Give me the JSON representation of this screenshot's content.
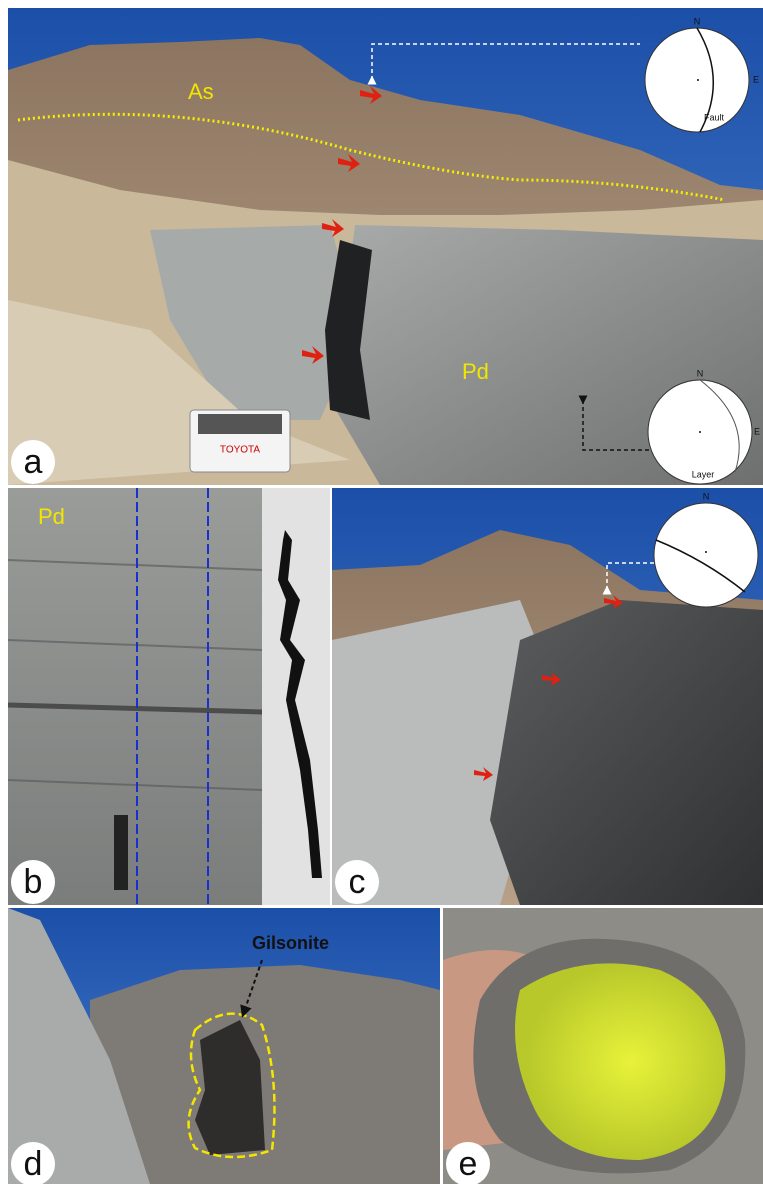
{
  "panels": [
    {
      "letter": "a",
      "labels": [
        "As",
        "Pd"
      ],
      "vehicle_text": "TOYOTA",
      "stereonets": [
        {
          "north": "N",
          "east": "E",
          "caption": "Fault"
        },
        {
          "north": "N",
          "east": "E",
          "caption": "Layer"
        }
      ]
    },
    {
      "letter": "b",
      "labels": [
        "Pd"
      ]
    },
    {
      "letter": "c",
      "stereonets": [
        {
          "north": "N"
        }
      ]
    },
    {
      "letter": "d",
      "labels": [
        "Gilsonite"
      ]
    },
    {
      "letter": "e"
    }
  ]
}
